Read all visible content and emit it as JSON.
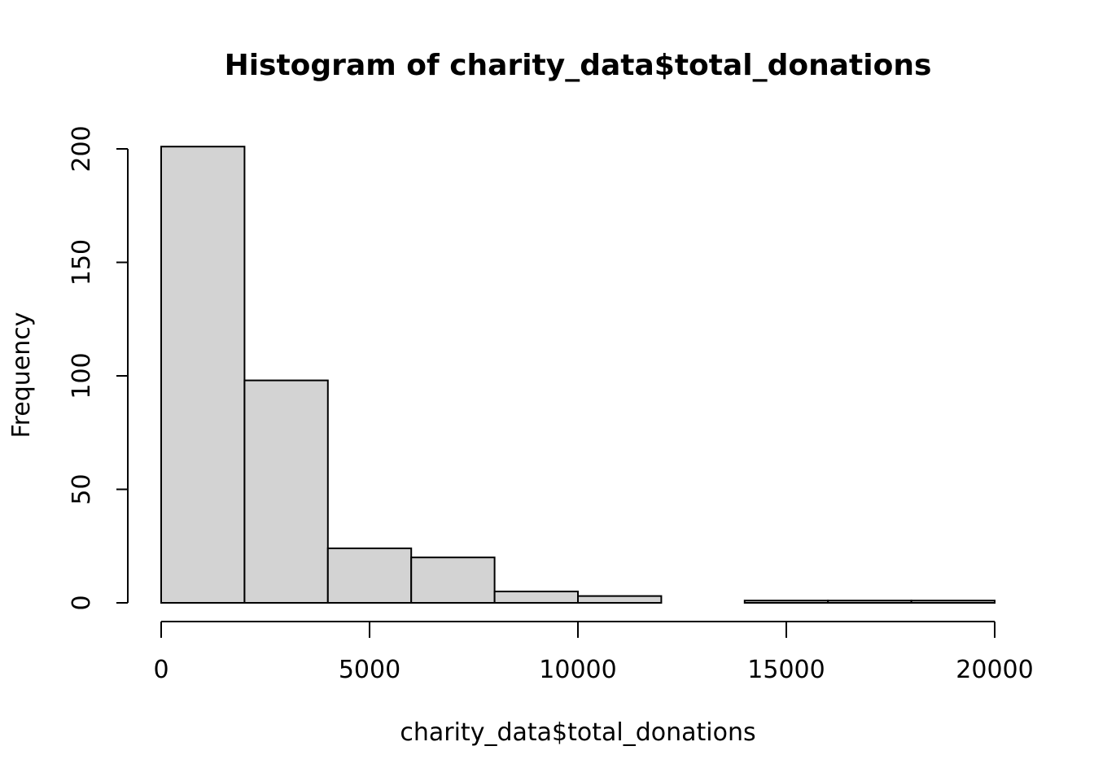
{
  "chart_data": {
    "type": "bar",
    "title": "Histogram of charity_data$total_donations",
    "xlabel": "charity_data$total_donations",
    "ylabel": "Frequency",
    "bins": [
      {
        "from": 0,
        "to": 2000,
        "count": 201
      },
      {
        "from": 2000,
        "to": 4000,
        "count": 98
      },
      {
        "from": 4000,
        "to": 6000,
        "count": 24
      },
      {
        "from": 6000,
        "to": 8000,
        "count": 20
      },
      {
        "from": 8000,
        "to": 10000,
        "count": 5
      },
      {
        "from": 10000,
        "to": 12000,
        "count": 3
      },
      {
        "from": 12000,
        "to": 14000,
        "count": 0
      },
      {
        "from": 14000,
        "to": 16000,
        "count": 1
      },
      {
        "from": 16000,
        "to": 18000,
        "count": 1
      },
      {
        "from": 18000,
        "to": 20000,
        "count": 1
      }
    ],
    "xlim": [
      0,
      20000
    ],
    "ylim": [
      0,
      200
    ],
    "x_ticks": [
      0,
      5000,
      10000,
      15000,
      20000
    ],
    "y_ticks": [
      0,
      50,
      100,
      150,
      200
    ],
    "bar_color": "#d3d3d3",
    "grid": false
  }
}
